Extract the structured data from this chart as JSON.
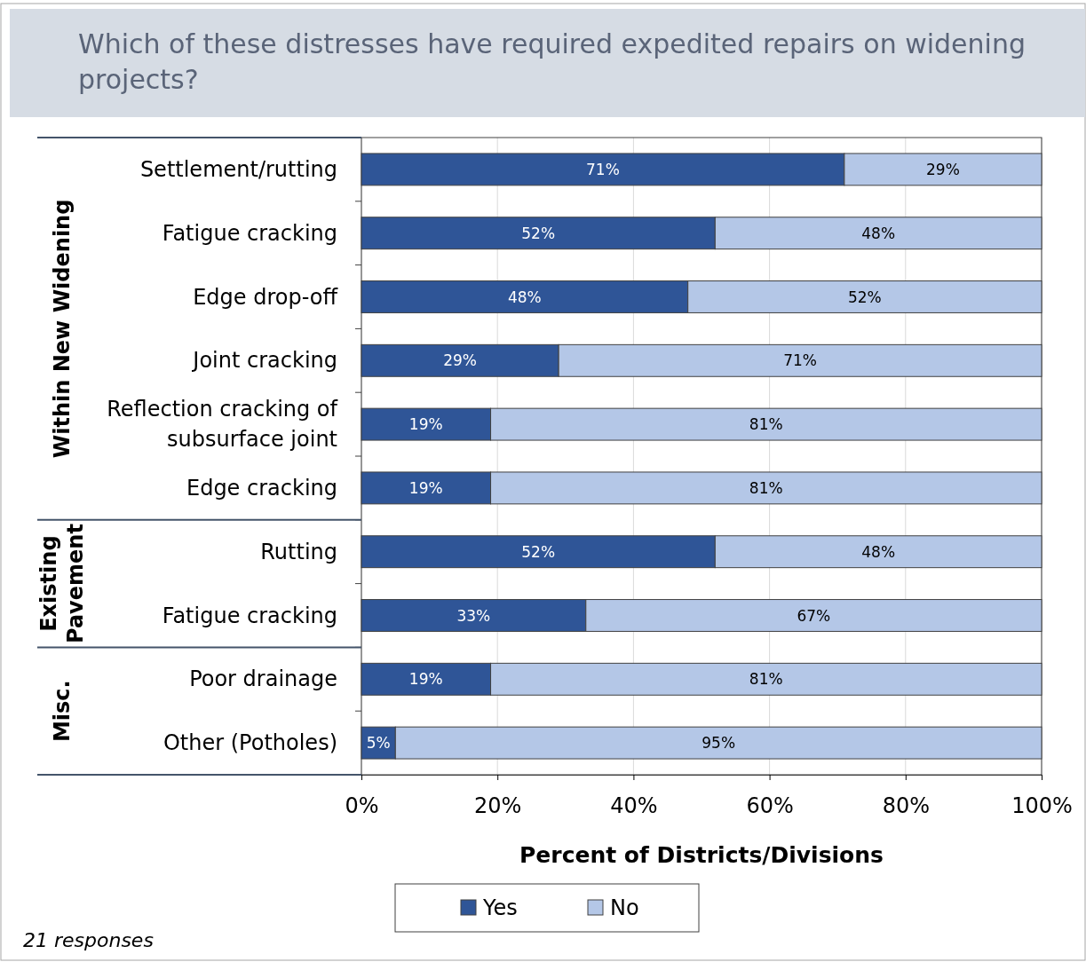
{
  "chart_data": {
    "type": "bar",
    "orientation": "horizontal",
    "stacked": true,
    "title": "Which of these distresses have required expedited repairs on widening projects?",
    "xlabel": "Percent of Districts/Divisions",
    "categories": [
      "Settlement/rutting",
      "Fatigue cracking",
      "Edge drop-off",
      "Joint cracking",
      "Reflection cracking of subsurface joint",
      "Edge cracking",
      "Rutting",
      "Fatigue cracking",
      "Poor drainage",
      "Other (Potholes)"
    ],
    "series": [
      {
        "name": "Yes",
        "color": "#2f5597",
        "values": [
          71,
          52,
          48,
          29,
          19,
          19,
          52,
          33,
          19,
          5
        ],
        "value_labels": [
          "71%",
          "52%",
          "48%",
          "29%",
          "19%",
          "19%",
          "52%",
          "33%",
          "19%",
          "5%"
        ]
      },
      {
        "name": "No",
        "color": "#b4c7e7",
        "values": [
          29,
          48,
          52,
          71,
          81,
          81,
          48,
          67,
          81,
          95
        ],
        "value_labels": [
          "29%",
          "48%",
          "52%",
          "71%",
          "81%",
          "81%",
          "48%",
          "67%",
          "81%",
          "95%"
        ]
      }
    ],
    "xlim": [
      0,
      100
    ],
    "xticks": [
      {
        "value": 0,
        "label": "0%"
      },
      {
        "value": 20,
        "label": "20%"
      },
      {
        "value": 40,
        "label": "40%"
      },
      {
        "value": 60,
        "label": "60%"
      },
      {
        "value": 80,
        "label": "80%"
      },
      {
        "value": 100,
        "label": "100%"
      }
    ],
    "grid": "x",
    "legend": "bottom",
    "annotations": [
      "Within New Widening",
      "Existing Pavement",
      "Misc.",
      "21 responses"
    ]
  }
}
